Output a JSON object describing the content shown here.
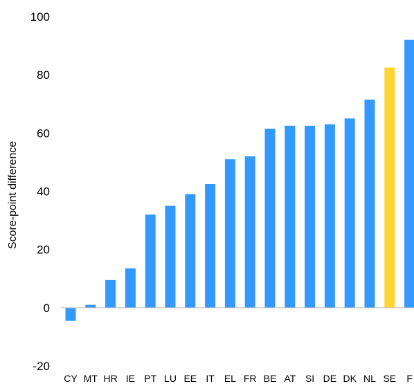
{
  "chart_data": {
    "type": "bar",
    "title": "",
    "xlabel": "",
    "ylabel": "Score-point difference",
    "ylim": [
      -20,
      100
    ],
    "yticks": [
      -20,
      0,
      20,
      40,
      60,
      80,
      100
    ],
    "grid": false,
    "legend": "none",
    "categories": [
      "CY",
      "MT",
      "HR",
      "IE",
      "PT",
      "LU",
      "EE",
      "IT",
      "EL",
      "FR",
      "BE",
      "AT",
      "SI",
      "DE",
      "DK",
      "NL",
      "SE",
      "F"
    ],
    "values": [
      -4.5,
      1.0,
      9.5,
      13.5,
      32.0,
      35.0,
      39.0,
      42.5,
      51.0,
      52.0,
      61.5,
      62.5,
      62.5,
      63.0,
      65.0,
      71.5,
      82.5,
      92.0
    ],
    "colors": {
      "default": "#3399ff",
      "highlight": "#ffd633",
      "axis": "#bfbfbf"
    },
    "highlight_categories": [
      "SE"
    ]
  }
}
